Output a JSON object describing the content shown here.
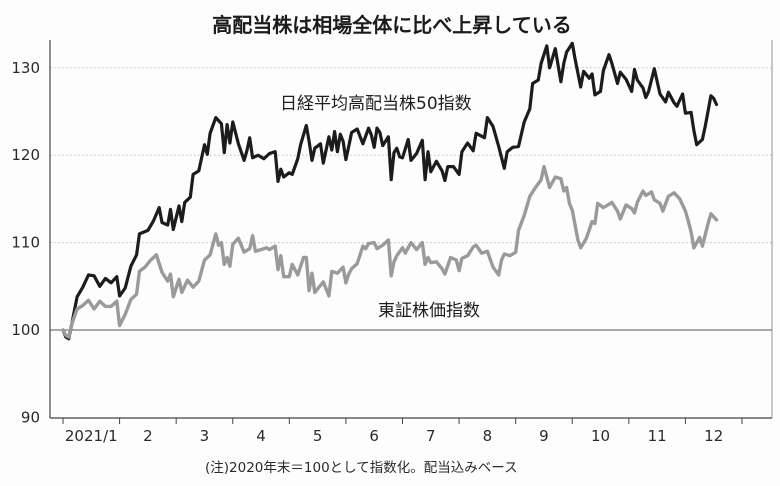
{
  "chart_data": {
    "type": "line",
    "title": "高配当株は相場全体に比べ上昇している",
    "note": "(注)2020年末＝100として指数化。配当込みベース",
    "xlabel": "",
    "ylabel": "",
    "ylim": [
      90,
      135
    ],
    "y_ticks": [
      90,
      100,
      110,
      120,
      130
    ],
    "x_tick_labels": [
      "2021/1",
      "2",
      "3",
      "4",
      "5",
      "6",
      "7",
      "8",
      "9",
      "10",
      "11",
      "12"
    ],
    "x_unit": "month (month-end positions, 0 = end of 2020)",
    "grid": "horizontal dotted",
    "series": [
      {
        "name": "日経平均高配当株50指数",
        "color": "#1c1c1c",
        "points": [
          [
            0.0,
            100.0
          ],
          [
            0.05,
            99.2
          ],
          [
            0.1,
            99.0
          ],
          [
            0.15,
            100.5
          ],
          [
            0.25,
            103.8
          ],
          [
            0.35,
            104.9
          ],
          [
            0.45,
            106.3
          ],
          [
            0.55,
            106.2
          ],
          [
            0.65,
            105.0
          ],
          [
            0.75,
            105.9
          ],
          [
            0.85,
            105.4
          ],
          [
            0.95,
            106.1
          ],
          [
            1.0,
            103.9
          ],
          [
            1.1,
            104.8
          ],
          [
            1.2,
            107.3
          ],
          [
            1.3,
            108.6
          ],
          [
            1.35,
            111.0
          ],
          [
            1.5,
            111.4
          ],
          [
            1.6,
            112.5
          ],
          [
            1.7,
            114.0
          ],
          [
            1.75,
            112.3
          ],
          [
            1.85,
            112.0
          ],
          [
            1.9,
            113.8
          ],
          [
            1.95,
            111.5
          ],
          [
            2.05,
            114.2
          ],
          [
            2.1,
            112.4
          ],
          [
            2.15,
            114.6
          ],
          [
            2.25,
            115.2
          ],
          [
            2.3,
            117.8
          ],
          [
            2.4,
            118.2
          ],
          [
            2.5,
            121.2
          ],
          [
            2.55,
            120.1
          ],
          [
            2.6,
            122.5
          ],
          [
            2.7,
            124.3
          ],
          [
            2.8,
            123.6
          ],
          [
            2.85,
            120.3
          ],
          [
            2.9,
            123.5
          ],
          [
            2.95,
            121.4
          ],
          [
            3.0,
            123.8
          ],
          [
            3.1,
            121.3
          ],
          [
            3.2,
            119.4
          ],
          [
            3.25,
            120.5
          ],
          [
            3.3,
            122.0
          ],
          [
            3.35,
            119.7
          ],
          [
            3.45,
            120.0
          ],
          [
            3.55,
            119.6
          ],
          [
            3.65,
            120.2
          ],
          [
            3.75,
            120.4
          ],
          [
            3.8,
            117.0
          ],
          [
            3.85,
            118.4
          ],
          [
            3.9,
            117.5
          ],
          [
            4.0,
            118.0
          ],
          [
            4.05,
            117.8
          ],
          [
            4.15,
            119.6
          ],
          [
            4.2,
            121.2
          ],
          [
            4.3,
            123.4
          ],
          [
            4.35,
            121.6
          ],
          [
            4.4,
            119.4
          ],
          [
            4.45,
            120.8
          ],
          [
            4.55,
            121.3
          ],
          [
            4.6,
            119.1
          ],
          [
            4.7,
            122.1
          ],
          [
            4.75,
            120.6
          ],
          [
            4.8,
            122.7
          ],
          [
            4.85,
            120.4
          ],
          [
            4.9,
            122.4
          ],
          [
            4.95,
            121.6
          ],
          [
            5.0,
            119.5
          ],
          [
            5.05,
            121.0
          ],
          [
            5.1,
            122.6
          ],
          [
            5.2,
            123.0
          ],
          [
            5.3,
            121.3
          ],
          [
            5.4,
            123.1
          ],
          [
            5.45,
            122.3
          ],
          [
            5.5,
            120.9
          ],
          [
            5.55,
            123.1
          ],
          [
            5.6,
            122.6
          ],
          [
            5.65,
            121.1
          ],
          [
            5.75,
            122.1
          ],
          [
            5.8,
            117.2
          ],
          [
            5.85,
            120.3
          ],
          [
            5.9,
            120.8
          ],
          [
            5.95,
            119.8
          ],
          [
            6.0,
            119.7
          ],
          [
            6.1,
            121.8
          ],
          [
            6.15,
            119.4
          ],
          [
            6.25,
            120.2
          ],
          [
            6.35,
            121.7
          ],
          [
            6.4,
            117.2
          ],
          [
            6.45,
            120.4
          ],
          [
            6.5,
            118.1
          ],
          [
            6.6,
            119.3
          ],
          [
            6.7,
            118.2
          ],
          [
            6.75,
            117.1
          ],
          [
            6.8,
            118.7
          ],
          [
            6.9,
            118.7
          ],
          [
            7.0,
            117.8
          ],
          [
            7.05,
            120.4
          ],
          [
            7.15,
            121.4
          ],
          [
            7.25,
            120.5
          ],
          [
            7.3,
            122.5
          ],
          [
            7.45,
            122.0
          ],
          [
            7.5,
            124.3
          ],
          [
            7.6,
            123.3
          ],
          [
            7.7,
            121.0
          ],
          [
            7.8,
            118.5
          ],
          [
            7.85,
            120.4
          ],
          [
            7.95,
            120.9
          ],
          [
            8.05,
            121.0
          ],
          [
            8.15,
            123.8
          ],
          [
            8.25,
            125.3
          ],
          [
            8.3,
            128.2
          ],
          [
            8.4,
            128.6
          ],
          [
            8.45,
            130.5
          ],
          [
            8.55,
            132.5
          ],
          [
            8.6,
            130.0
          ],
          [
            8.7,
            132.2
          ],
          [
            8.8,
            128.4
          ],
          [
            8.85,
            130.5
          ],
          [
            8.9,
            131.8
          ],
          [
            9.0,
            132.8
          ],
          [
            9.05,
            131.0
          ],
          [
            9.15,
            127.8
          ],
          [
            9.2,
            129.6
          ],
          [
            9.3,
            128.8
          ],
          [
            9.35,
            129.3
          ],
          [
            9.4,
            126.9
          ],
          [
            9.5,
            127.3
          ],
          [
            9.55,
            129.7
          ],
          [
            9.65,
            131.5
          ],
          [
            9.7,
            130.5
          ],
          [
            9.8,
            128.2
          ],
          [
            9.85,
            129.5
          ],
          [
            9.95,
            128.7
          ],
          [
            10.05,
            127.3
          ],
          [
            10.1,
            129.8
          ],
          [
            10.15,
            128.6
          ],
          [
            10.25,
            127.7
          ],
          [
            10.3,
            126.6
          ],
          [
            10.35,
            127.3
          ],
          [
            10.45,
            129.9
          ],
          [
            10.55,
            127.0
          ],
          [
            10.65,
            126.1
          ],
          [
            10.7,
            127.2
          ],
          [
            10.8,
            126.0
          ],
          [
            10.85,
            125.6
          ],
          [
            10.95,
            127.0
          ],
          [
            11.0,
            124.8
          ],
          [
            11.1,
            124.9
          ],
          [
            11.15,
            122.8
          ],
          [
            11.2,
            121.2
          ],
          [
            11.3,
            121.8
          ],
          [
            11.35,
            123.3
          ],
          [
            11.45,
            126.8
          ],
          [
            11.5,
            126.5
          ],
          [
            11.55,
            125.8
          ]
        ]
      },
      {
        "name": "東証株価指数",
        "color": "#9a9a9a",
        "points": [
          [
            0.0,
            100.0
          ],
          [
            0.05,
            99.4
          ],
          [
            0.1,
            99.2
          ],
          [
            0.15,
            100.6
          ],
          [
            0.25,
            102.4
          ],
          [
            0.35,
            102.8
          ],
          [
            0.45,
            103.4
          ],
          [
            0.55,
            102.4
          ],
          [
            0.65,
            103.3
          ],
          [
            0.75,
            102.7
          ],
          [
            0.85,
            102.7
          ],
          [
            0.95,
            103.3
          ],
          [
            1.0,
            100.5
          ],
          [
            1.1,
            101.8
          ],
          [
            1.2,
            103.5
          ],
          [
            1.3,
            104.1
          ],
          [
            1.35,
            106.7
          ],
          [
            1.45,
            107.2
          ],
          [
            1.55,
            108.0
          ],
          [
            1.65,
            108.6
          ],
          [
            1.75,
            106.6
          ],
          [
            1.85,
            105.6
          ],
          [
            1.9,
            106.4
          ],
          [
            1.95,
            103.8
          ],
          [
            2.05,
            105.8
          ],
          [
            2.1,
            104.3
          ],
          [
            2.2,
            105.7
          ],
          [
            2.3,
            104.9
          ],
          [
            2.4,
            105.6
          ],
          [
            2.5,
            108.0
          ],
          [
            2.6,
            108.6
          ],
          [
            2.7,
            111.0
          ],
          [
            2.75,
            109.7
          ],
          [
            2.8,
            110.0
          ],
          [
            2.85,
            107.5
          ],
          [
            2.9,
            108.3
          ],
          [
            2.95,
            107.3
          ],
          [
            3.0,
            109.8
          ],
          [
            3.1,
            110.5
          ],
          [
            3.2,
            108.9
          ],
          [
            3.3,
            109.3
          ],
          [
            3.35,
            110.8
          ],
          [
            3.4,
            109.0
          ],
          [
            3.5,
            109.2
          ],
          [
            3.6,
            109.4
          ],
          [
            3.65,
            109.2
          ],
          [
            3.75,
            109.6
          ],
          [
            3.8,
            106.9
          ],
          [
            3.85,
            108.5
          ],
          [
            3.9,
            106.1
          ],
          [
            4.0,
            106.1
          ],
          [
            4.05,
            107.5
          ],
          [
            4.15,
            106.3
          ],
          [
            4.25,
            108.3
          ],
          [
            4.3,
            108.3
          ],
          [
            4.35,
            104.5
          ],
          [
            4.4,
            106.5
          ],
          [
            4.45,
            104.3
          ],
          [
            4.5,
            104.7
          ],
          [
            4.6,
            105.5
          ],
          [
            4.7,
            103.9
          ],
          [
            4.75,
            106.7
          ],
          [
            4.85,
            106.5
          ],
          [
            4.95,
            107.2
          ],
          [
            5.0,
            105.4
          ],
          [
            5.05,
            106.4
          ],
          [
            5.1,
            107.0
          ],
          [
            5.2,
            107.6
          ],
          [
            5.3,
            109.6
          ],
          [
            5.35,
            109.3
          ],
          [
            5.4,
            109.9
          ],
          [
            5.5,
            110.0
          ],
          [
            5.55,
            109.3
          ],
          [
            5.65,
            109.7
          ],
          [
            5.75,
            110.3
          ],
          [
            5.8,
            106.2
          ],
          [
            5.85,
            107.8
          ],
          [
            5.9,
            108.5
          ],
          [
            6.0,
            109.4
          ],
          [
            6.05,
            108.8
          ],
          [
            6.15,
            110.0
          ],
          [
            6.25,
            109.2
          ],
          [
            6.35,
            110.0
          ],
          [
            6.4,
            107.5
          ],
          [
            6.45,
            108.3
          ],
          [
            6.5,
            107.7
          ],
          [
            6.6,
            107.8
          ],
          [
            6.7,
            107.0
          ],
          [
            6.75,
            106.4
          ],
          [
            6.85,
            108.3
          ],
          [
            6.95,
            108.0
          ],
          [
            7.0,
            106.8
          ],
          [
            7.05,
            108.2
          ],
          [
            7.15,
            108.5
          ],
          [
            7.25,
            109.5
          ],
          [
            7.3,
            109.7
          ],
          [
            7.4,
            108.8
          ],
          [
            7.5,
            109.0
          ],
          [
            7.6,
            107.2
          ],
          [
            7.7,
            106.3
          ],
          [
            7.75,
            108.0
          ],
          [
            7.8,
            108.7
          ],
          [
            7.9,
            108.5
          ],
          [
            8.0,
            108.9
          ],
          [
            8.05,
            111.4
          ],
          [
            8.15,
            113.1
          ],
          [
            8.25,
            115.3
          ],
          [
            8.35,
            116.3
          ],
          [
            8.45,
            117.2
          ],
          [
            8.5,
            118.7
          ],
          [
            8.6,
            116.3
          ],
          [
            8.7,
            117.5
          ],
          [
            8.8,
            117.3
          ],
          [
            8.85,
            115.9
          ],
          [
            8.9,
            116.3
          ],
          [
            8.95,
            114.5
          ],
          [
            9.0,
            113.7
          ],
          [
            9.1,
            110.3
          ],
          [
            9.15,
            109.4
          ],
          [
            9.25,
            110.5
          ],
          [
            9.35,
            112.4
          ],
          [
            9.4,
            112.2
          ],
          [
            9.45,
            114.5
          ],
          [
            9.55,
            114.0
          ],
          [
            9.6,
            114.2
          ],
          [
            9.7,
            114.6
          ],
          [
            9.8,
            113.6
          ],
          [
            9.85,
            112.7
          ],
          [
            9.95,
            114.3
          ],
          [
            10.05,
            113.9
          ],
          [
            10.1,
            113.4
          ],
          [
            10.15,
            114.6
          ],
          [
            10.25,
            115.9
          ],
          [
            10.3,
            115.4
          ],
          [
            10.4,
            115.8
          ],
          [
            10.45,
            114.9
          ],
          [
            10.55,
            114.5
          ],
          [
            10.6,
            113.6
          ],
          [
            10.7,
            115.3
          ],
          [
            10.8,
            115.7
          ],
          [
            10.9,
            115.0
          ],
          [
            11.0,
            113.6
          ],
          [
            11.05,
            112.5
          ],
          [
            11.1,
            111.2
          ],
          [
            11.15,
            109.4
          ],
          [
            11.25,
            110.6
          ],
          [
            11.3,
            109.6
          ],
          [
            11.4,
            112.2
          ],
          [
            11.45,
            113.3
          ],
          [
            11.55,
            112.6
          ]
        ]
      }
    ]
  }
}
